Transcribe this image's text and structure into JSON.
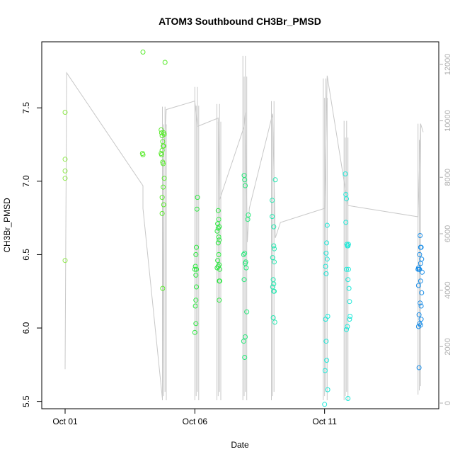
{
  "chart_data": {
    "type": "scatter",
    "title": "ATOM3 Southbound CH3Br_PMSD",
    "xlabel": "Date",
    "ylabel": "CH3Br_PMSD",
    "x_ticks": [
      {
        "day": 1,
        "label": "Oct 01"
      },
      {
        "day": 6,
        "label": "Oct 06"
      },
      {
        "day": 11,
        "label": "Oct 11"
      }
    ],
    "xlim_days": [
      0.1,
      15.4
    ],
    "ylim": [
      5.45,
      7.95
    ],
    "y_ticks": [
      5.5,
      6.0,
      6.5,
      7.0,
      7.5
    ],
    "y2_ticks": [
      0,
      2000,
      4000,
      6000,
      8000,
      10000,
      12000
    ],
    "y2lim": [
      -200,
      12800
    ],
    "series": [
      {
        "name": "",
        "color": "#8ee84a",
        "points": [
          [
            1.0,
            7.47
          ],
          [
            1.0,
            7.15
          ],
          [
            1.0,
            7.07
          ],
          [
            1.0,
            7.02
          ],
          [
            1.0,
            6.46
          ]
        ]
      },
      {
        "name": "",
        "color": "#5aeb2e",
        "points": [
          [
            4.0,
            7.88
          ],
          [
            4.85,
            7.81
          ],
          [
            3.98,
            7.19
          ],
          [
            4.0,
            7.18
          ],
          [
            4.7,
            7.35
          ],
          [
            4.72,
            7.33
          ],
          [
            4.74,
            7.31
          ],
          [
            4.76,
            7.27
          ],
          [
            4.78,
            7.24
          ],
          [
            4.8,
            7.33
          ],
          [
            4.82,
            7.32
          ],
          [
            4.7,
            7.19
          ],
          [
            4.72,
            7.18
          ],
          [
            4.74,
            7.21
          ],
          [
            4.76,
            7.13
          ],
          [
            4.78,
            7.12
          ],
          [
            4.8,
            7.24
          ],
          [
            4.82,
            7.02
          ],
          [
            4.78,
            6.96
          ],
          [
            4.74,
            6.89
          ],
          [
            4.8,
            6.84
          ],
          [
            4.74,
            6.78
          ],
          [
            4.76,
            6.27
          ]
        ]
      },
      {
        "name": "",
        "color": "#2ee842",
        "points": [
          [
            6.1,
            6.89
          ],
          [
            6.08,
            6.81
          ],
          [
            6.06,
            6.55
          ],
          [
            6.04,
            6.5
          ],
          [
            6.02,
            6.42
          ],
          [
            6.06,
            6.4
          ],
          [
            6.0,
            6.4
          ],
          [
            6.04,
            6.36
          ],
          [
            6.06,
            6.28
          ],
          [
            6.04,
            6.19
          ],
          [
            6.02,
            6.15
          ],
          [
            6.04,
            6.03
          ],
          [
            6.0,
            5.97
          ],
          [
            6.9,
            6.8
          ],
          [
            6.92,
            6.74
          ],
          [
            6.88,
            6.71
          ],
          [
            6.94,
            6.69
          ],
          [
            6.9,
            6.68
          ],
          [
            6.86,
            6.66
          ],
          [
            6.92,
            6.62
          ],
          [
            6.94,
            6.6
          ],
          [
            6.9,
            6.58
          ],
          [
            6.92,
            6.5
          ],
          [
            6.88,
            6.46
          ],
          [
            6.94,
            6.43
          ],
          [
            6.9,
            6.42
          ],
          [
            6.86,
            6.41
          ],
          [
            6.96,
            6.4
          ],
          [
            6.94,
            6.32
          ],
          [
            6.96,
            6.32
          ],
          [
            6.94,
            6.19
          ]
        ]
      },
      {
        "name": "",
        "color": "#26e87a",
        "points": [
          [
            7.9,
            7.04
          ],
          [
            7.92,
            7.01
          ],
          [
            7.94,
            6.97
          ],
          [
            7.88,
            6.5
          ],
          [
            7.92,
            6.51
          ],
          [
            7.94,
            6.44
          ],
          [
            7.96,
            6.45
          ],
          [
            7.98,
            6.41
          ],
          [
            7.9,
            6.33
          ],
          [
            8.0,
            6.11
          ],
          [
            7.94,
            5.94
          ],
          [
            7.88,
            5.91
          ],
          [
            7.92,
            5.8
          ],
          [
            8.06,
            6.77
          ],
          [
            8.04,
            6.74
          ]
        ]
      },
      {
        "name": "",
        "color": "#22e8b0",
        "points": [
          [
            8.98,
            6.87
          ],
          [
            9.1,
            7.01
          ],
          [
            8.98,
            6.76
          ],
          [
            9.04,
            6.69
          ],
          [
            9.04,
            6.56
          ],
          [
            9.06,
            6.54
          ],
          [
            9.0,
            6.48
          ],
          [
            9.06,
            6.45
          ],
          [
            9.02,
            6.33
          ],
          [
            9.04,
            6.3
          ],
          [
            9.0,
            6.28
          ],
          [
            9.04,
            6.25
          ],
          [
            9.06,
            6.25
          ],
          [
            9.02,
            6.07
          ],
          [
            9.08,
            6.04
          ]
        ]
      },
      {
        "name": "",
        "color": "#1ee8d8",
        "points": [
          [
            11.1,
            6.7
          ],
          [
            11.08,
            6.58
          ],
          [
            11.06,
            6.51
          ],
          [
            11.1,
            6.47
          ],
          [
            11.04,
            6.42
          ],
          [
            11.06,
            6.37
          ],
          [
            11.12,
            6.08
          ],
          [
            11.04,
            6.06
          ],
          [
            11.06,
            5.91
          ],
          [
            11.08,
            5.78
          ],
          [
            11.02,
            5.71
          ],
          [
            11.12,
            5.58
          ],
          [
            11.0,
            5.48
          ],
          [
            11.8,
            7.05
          ],
          [
            11.82,
            6.91
          ],
          [
            11.84,
            6.88
          ],
          [
            11.82,
            6.72
          ],
          [
            11.86,
            6.57
          ],
          [
            11.88,
            6.56
          ],
          [
            11.9,
            6.56
          ],
          [
            11.92,
            6.57
          ],
          [
            11.84,
            6.4
          ],
          [
            11.92,
            6.4
          ],
          [
            11.9,
            6.33
          ],
          [
            11.94,
            6.27
          ],
          [
            11.96,
            6.18
          ],
          [
            11.98,
            6.08
          ],
          [
            11.96,
            6.06
          ],
          [
            11.88,
            6.01
          ],
          [
            11.84,
            5.99
          ],
          [
            11.9,
            5.52
          ]
        ]
      },
      {
        "name": "",
        "color": "#1a8ee8",
        "points": [
          [
            14.68,
            6.63
          ],
          [
            14.7,
            6.55
          ],
          [
            14.72,
            6.55
          ],
          [
            14.66,
            6.5
          ],
          [
            14.74,
            6.47
          ],
          [
            14.7,
            6.44
          ],
          [
            14.6,
            6.4
          ],
          [
            14.62,
            6.41
          ],
          [
            14.64,
            6.4
          ],
          [
            14.66,
            6.4
          ],
          [
            14.76,
            6.38
          ],
          [
            14.7,
            6.32
          ],
          [
            14.62,
            6.29
          ],
          [
            14.74,
            6.24
          ],
          [
            14.68,
            6.17
          ],
          [
            14.72,
            6.15
          ],
          [
            14.64,
            6.09
          ],
          [
            14.72,
            6.06
          ],
          [
            14.66,
            6.03
          ],
          [
            14.62,
            6.01
          ],
          [
            14.7,
            6.02
          ],
          [
            14.64,
            5.73
          ]
        ]
      }
    ],
    "secondary_line": {
      "color": "#c8c8c8",
      "description_axis": "right",
      "path_days_vals": [
        [
          1.0,
          1200
        ],
        [
          1.06,
          11700
        ],
        [
          4.0,
          7700
        ],
        [
          4.0,
          6900
        ],
        [
          4.75,
          150
        ],
        [
          4.8,
          8800
        ],
        [
          4.9,
          10400
        ],
        [
          6.0,
          10700
        ],
        [
          6.1,
          9800
        ],
        [
          6.9,
          10100
        ],
        [
          6.95,
          7200
        ],
        [
          7.9,
          9800
        ],
        [
          7.95,
          10300
        ],
        [
          8.02,
          5700
        ],
        [
          8.1,
          6900
        ],
        [
          9.0,
          10250
        ],
        [
          9.1,
          5850
        ],
        [
          9.3,
          6400
        ],
        [
          11.0,
          6900
        ],
        [
          11.1,
          11600
        ],
        [
          11.9,
          7000
        ],
        [
          14.6,
          6600
        ],
        [
          14.7,
          9900
        ],
        [
          14.8,
          9600
        ]
      ]
    }
  }
}
